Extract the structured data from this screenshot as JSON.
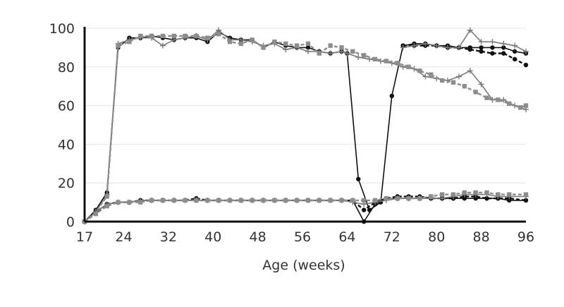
{
  "chart_data": {
    "type": "line",
    "xlabel": "Age (weeks)",
    "ylabel": "",
    "xlim": [
      17,
      96
    ],
    "ylim": [
      0,
      100
    ],
    "x_ticks": [
      17,
      24,
      32,
      40,
      48,
      56,
      64,
      72,
      80,
      88,
      96
    ],
    "y_ticks": [
      0,
      20,
      40,
      60,
      80,
      100
    ],
    "grid": true,
    "legend": "none",
    "series": [
      {
        "style": "solid-black-circle",
        "color": "#111111",
        "points": [
          [
            17,
            0
          ],
          [
            19,
            6
          ],
          [
            21,
            15
          ],
          [
            23,
            90
          ],
          [
            25,
            95
          ],
          [
            27,
            95
          ],
          [
            29,
            96
          ],
          [
            31,
            95
          ],
          [
            33,
            94
          ],
          [
            35,
            95
          ],
          [
            37,
            95
          ],
          [
            39,
            93
          ],
          [
            41,
            98
          ],
          [
            43,
            95
          ],
          [
            45,
            94
          ],
          [
            47,
            94
          ],
          [
            49,
            90
          ],
          [
            51,
            93
          ],
          [
            53,
            91
          ],
          [
            55,
            90
          ],
          [
            57,
            90
          ],
          [
            59,
            88
          ],
          [
            61,
            87
          ],
          [
            63,
            88
          ],
          [
            64,
            87
          ],
          [
            66,
            22
          ],
          [
            68,
            6
          ],
          [
            70,
            10
          ],
          [
            72,
            65
          ],
          [
            74,
            91
          ],
          [
            76,
            92
          ],
          [
            78,
            92
          ],
          [
            80,
            91
          ],
          [
            82,
            91
          ],
          [
            84,
            90
          ],
          [
            86,
            90
          ],
          [
            88,
            90
          ],
          [
            90,
            90
          ],
          [
            92,
            90
          ],
          [
            94,
            88
          ],
          [
            96,
            87
          ]
        ]
      },
      {
        "style": "dashed-black-circle",
        "color": "#111111",
        "points": [
          [
            74,
            91
          ],
          [
            76,
            91
          ],
          [
            78,
            91
          ],
          [
            80,
            91
          ],
          [
            82,
            90
          ],
          [
            84,
            90
          ],
          [
            86,
            89
          ],
          [
            88,
            88
          ],
          [
            90,
            87
          ],
          [
            92,
            87
          ],
          [
            94,
            84
          ],
          [
            96,
            81
          ]
        ]
      },
      {
        "style": "solid-gray-plus",
        "color": "#7a7a7a",
        "points": [
          [
            17,
            0
          ],
          [
            19,
            5
          ],
          [
            21,
            14
          ],
          [
            23,
            92
          ],
          [
            25,
            94
          ],
          [
            27,
            95
          ],
          [
            29,
            95
          ],
          [
            31,
            91
          ],
          [
            33,
            94
          ],
          [
            35,
            95
          ],
          [
            37,
            96
          ],
          [
            39,
            94
          ],
          [
            41,
            99
          ],
          [
            43,
            94
          ],
          [
            45,
            94
          ],
          [
            47,
            93
          ],
          [
            49,
            91
          ],
          [
            51,
            92
          ],
          [
            53,
            89
          ],
          [
            55,
            90
          ],
          [
            57,
            88
          ],
          [
            59,
            88
          ],
          [
            61,
            87
          ],
          [
            63,
            88
          ],
          [
            64,
            87
          ],
          [
            66,
            85
          ],
          [
            68,
            84
          ],
          [
            70,
            83
          ],
          [
            72,
            82
          ],
          [
            74,
            80
          ],
          [
            76,
            79
          ],
          [
            78,
            75
          ],
          [
            80,
            74
          ],
          [
            82,
            73
          ],
          [
            84,
            75
          ],
          [
            86,
            78
          ],
          [
            88,
            71
          ],
          [
            90,
            63
          ],
          [
            92,
            63
          ],
          [
            94,
            60
          ],
          [
            96,
            58
          ]
        ]
      },
      {
        "style": "dashed-gray-square",
        "color": "#8c8c8c",
        "points": [
          [
            17,
            0
          ],
          [
            19,
            5
          ],
          [
            21,
            13
          ],
          [
            23,
            91
          ],
          [
            25,
            93
          ],
          [
            27,
            96
          ],
          [
            29,
            96
          ],
          [
            31,
            96
          ],
          [
            33,
            96
          ],
          [
            35,
            96
          ],
          [
            37,
            96
          ],
          [
            39,
            95
          ],
          [
            41,
            97
          ],
          [
            43,
            93
          ],
          [
            45,
            92
          ],
          [
            47,
            94
          ],
          [
            49,
            90
          ],
          [
            51,
            93
          ],
          [
            53,
            92
          ],
          [
            55,
            91
          ],
          [
            57,
            92
          ],
          [
            59,
            87
          ],
          [
            61,
            91
          ],
          [
            63,
            90
          ],
          [
            65,
            88
          ],
          [
            67,
            86
          ],
          [
            69,
            84
          ],
          [
            71,
            83
          ],
          [
            73,
            82
          ],
          [
            75,
            80
          ],
          [
            77,
            78
          ],
          [
            79,
            76
          ],
          [
            81,
            73
          ],
          [
            83,
            72
          ],
          [
            85,
            70
          ],
          [
            87,
            67
          ],
          [
            89,
            64
          ],
          [
            91,
            63
          ],
          [
            93,
            61
          ],
          [
            95,
            59
          ],
          [
            96,
            60
          ]
        ]
      },
      {
        "style": "solid-gray-plus",
        "color": "#7a7a7a",
        "points": [
          [
            74,
            90
          ],
          [
            76,
            91
          ],
          [
            78,
            92
          ],
          [
            80,
            91
          ],
          [
            82,
            90
          ],
          [
            84,
            90
          ],
          [
            86,
            99
          ],
          [
            88,
            93
          ],
          [
            90,
            93
          ],
          [
            92,
            92
          ],
          [
            94,
            91
          ],
          [
            96,
            88
          ]
        ]
      },
      {
        "style": "solid-black-circle",
        "color": "#111111",
        "points": [
          [
            17,
            0
          ],
          [
            19,
            5
          ],
          [
            21,
            9
          ],
          [
            23,
            10
          ],
          [
            25,
            10
          ],
          [
            27,
            11
          ],
          [
            29,
            11
          ],
          [
            31,
            11
          ],
          [
            33,
            11
          ],
          [
            35,
            11
          ],
          [
            37,
            11
          ],
          [
            39,
            11
          ],
          [
            41,
            11
          ],
          [
            43,
            11
          ],
          [
            45,
            11
          ],
          [
            47,
            11
          ],
          [
            49,
            11
          ],
          [
            51,
            11
          ],
          [
            53,
            11
          ],
          [
            55,
            11
          ],
          [
            57,
            11
          ],
          [
            59,
            11
          ],
          [
            61,
            11
          ],
          [
            63,
            11
          ],
          [
            65,
            11
          ],
          [
            67,
            0
          ],
          [
            69,
            9
          ],
          [
            71,
            12
          ],
          [
            73,
            12
          ],
          [
            75,
            12
          ],
          [
            77,
            12
          ],
          [
            79,
            12
          ],
          [
            81,
            12
          ],
          [
            83,
            12
          ],
          [
            85,
            12
          ],
          [
            87,
            12
          ],
          [
            89,
            12
          ],
          [
            91,
            12
          ],
          [
            93,
            11
          ],
          [
            96,
            11
          ]
        ]
      },
      {
        "style": "dashed-black-circle",
        "color": "#111111",
        "points": [
          [
            17,
            0
          ],
          [
            19,
            4
          ],
          [
            21,
            9
          ],
          [
            23,
            10
          ],
          [
            25,
            10
          ],
          [
            27,
            11
          ],
          [
            29,
            11
          ],
          [
            31,
            11
          ],
          [
            33,
            11
          ],
          [
            35,
            11
          ],
          [
            37,
            12
          ],
          [
            39,
            11
          ],
          [
            41,
            11
          ],
          [
            43,
            11
          ],
          [
            45,
            11
          ],
          [
            47,
            11
          ],
          [
            49,
            11
          ],
          [
            51,
            11
          ],
          [
            53,
            11
          ],
          [
            55,
            11
          ],
          [
            57,
            11
          ],
          [
            59,
            11
          ],
          [
            61,
            11
          ],
          [
            63,
            11
          ],
          [
            65,
            11
          ],
          [
            67,
            6
          ],
          [
            69,
            10
          ],
          [
            71,
            12
          ],
          [
            73,
            13
          ],
          [
            75,
            13
          ],
          [
            77,
            13
          ],
          [
            79,
            12
          ],
          [
            81,
            12
          ],
          [
            83,
            12
          ],
          [
            85,
            13
          ],
          [
            87,
            13
          ],
          [
            89,
            12
          ],
          [
            91,
            12
          ],
          [
            93,
            12
          ],
          [
            96,
            11
          ]
        ]
      },
      {
        "style": "solid-gray-plus",
        "color": "#7a7a7a",
        "points": [
          [
            17,
            0
          ],
          [
            19,
            5
          ],
          [
            21,
            9
          ],
          [
            23,
            10
          ],
          [
            25,
            10
          ],
          [
            27,
            11
          ],
          [
            29,
            11
          ],
          [
            31,
            11
          ],
          [
            33,
            11
          ],
          [
            35,
            11
          ],
          [
            37,
            11
          ],
          [
            39,
            11
          ],
          [
            41,
            11
          ],
          [
            43,
            11
          ],
          [
            45,
            11
          ],
          [
            47,
            11
          ],
          [
            49,
            11
          ],
          [
            51,
            11
          ],
          [
            53,
            11
          ],
          [
            55,
            11
          ],
          [
            57,
            11
          ],
          [
            59,
            11
          ],
          [
            61,
            11
          ],
          [
            63,
            11
          ],
          [
            65,
            10
          ],
          [
            67,
            9
          ],
          [
            69,
            10
          ],
          [
            71,
            11
          ],
          [
            73,
            12
          ],
          [
            75,
            12
          ],
          [
            77,
            12
          ],
          [
            79,
            12
          ],
          [
            81,
            12
          ],
          [
            83,
            13
          ],
          [
            85,
            14
          ],
          [
            87,
            14
          ],
          [
            89,
            14
          ],
          [
            91,
            13
          ],
          [
            93,
            13
          ],
          [
            96,
            13
          ]
        ]
      },
      {
        "style": "dashed-gray-square",
        "color": "#8c8c8c",
        "points": [
          [
            17,
            0
          ],
          [
            19,
            4
          ],
          [
            21,
            8
          ],
          [
            23,
            10
          ],
          [
            25,
            10
          ],
          [
            27,
            10
          ],
          [
            29,
            11
          ],
          [
            31,
            11
          ],
          [
            33,
            11
          ],
          [
            35,
            11
          ],
          [
            37,
            11
          ],
          [
            39,
            11
          ],
          [
            41,
            11
          ],
          [
            43,
            11
          ],
          [
            45,
            11
          ],
          [
            47,
            11
          ],
          [
            49,
            11
          ],
          [
            51,
            11
          ],
          [
            53,
            11
          ],
          [
            55,
            11
          ],
          [
            57,
            11
          ],
          [
            59,
            11
          ],
          [
            61,
            11
          ],
          [
            63,
            11
          ],
          [
            65,
            11
          ],
          [
            67,
            11
          ],
          [
            69,
            11
          ],
          [
            71,
            12
          ],
          [
            73,
            12
          ],
          [
            75,
            12
          ],
          [
            77,
            12
          ],
          [
            79,
            13
          ],
          [
            81,
            14
          ],
          [
            83,
            14
          ],
          [
            85,
            15
          ],
          [
            87,
            15
          ],
          [
            89,
            15
          ],
          [
            91,
            14
          ],
          [
            93,
            14
          ],
          [
            96,
            14
          ]
        ]
      }
    ]
  }
}
